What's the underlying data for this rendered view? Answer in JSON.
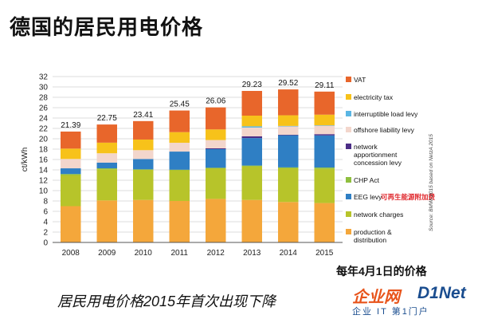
{
  "page_title": "德国的居民用电价格",
  "note": "每年4月1日的价格",
  "caption": "居民用电价格2015年首次出现下降",
  "source_text": "Source: BMWi 2015 based on NetzA 2015",
  "watermark": {
    "brand_cn": "企业网",
    "brand_en": "D1Net",
    "sub": "企业 IT 第1门户"
  },
  "colors": {
    "production": "#f4a73b",
    "network": "#b7c42a",
    "eeg": "#2f7fc4",
    "chp": "#8fbf3f",
    "concession": "#4b2d86",
    "offshore": "#f3d6cc",
    "interruptible": "#5ab6e4",
    "electricity_tax": "#f7c21a",
    "vat": "#e8662b",
    "eeg_cn_label": "#e0262b"
  },
  "chart_data": {
    "type": "bar",
    "stacked": true,
    "title": "",
    "xlabel": "",
    "ylabel": "ct/kWh",
    "ylim": [
      0,
      32
    ],
    "yticks": [
      0,
      2,
      4,
      6,
      8,
      10,
      12,
      14,
      16,
      18,
      20,
      22,
      24,
      26,
      28,
      30,
      32
    ],
    "grid": true,
    "legend_position": "right",
    "categories": [
      "2008",
      "2009",
      "2010",
      "2011",
      "2012",
      "2013",
      "2014",
      "2015"
    ],
    "totals": [
      "21.39",
      "22.75",
      "23.41",
      "25.45",
      "26.06",
      "29.23",
      "29.52",
      "29.11"
    ],
    "series": [
      {
        "name": "production & distribution",
        "color_key": "production",
        "values": [
          7.0,
          8.1,
          8.2,
          8.0,
          8.4,
          8.2,
          7.8,
          7.6
        ]
      },
      {
        "name": "network charges",
        "color_key": "network",
        "values": [
          6.0,
          6.0,
          5.8,
          6.0,
          6.0,
          6.5,
          6.5,
          6.6
        ]
      },
      {
        "name": "CHP Act",
        "color_key": "chp",
        "values": [
          0.2,
          0.2,
          0.1,
          0.03,
          0.002,
          0.13,
          0.18,
          0.25
        ]
      },
      {
        "name": "EEG levy",
        "color_key": "eeg",
        "values": [
          1.1,
          1.1,
          2.0,
          3.5,
          3.6,
          5.3,
          6.2,
          6.2
        ]
      },
      {
        "name": "network apportionment concession levy",
        "color_key": "concession",
        "values": [
          0.0,
          0.0,
          0.0,
          0.0,
          0.15,
          0.33,
          0.09,
          0.24
        ]
      },
      {
        "name": "offshore liability levy",
        "color_key": "offshore",
        "values": [
          1.8,
          1.8,
          1.7,
          1.7,
          1.6,
          1.7,
          1.7,
          1.7
        ]
      },
      {
        "name": "interruptible load levy",
        "color_key": "interruptible",
        "values": [
          0.0,
          0.0,
          0.0,
          0.0,
          0.0,
          0.25,
          0.01,
          0.01
        ]
      },
      {
        "name": "electricity tax",
        "color_key": "electricity_tax",
        "values": [
          2.0,
          2.05,
          2.05,
          2.05,
          2.05,
          2.05,
          2.05,
          2.05
        ]
      },
      {
        "name": "VAT",
        "color_key": "vat",
        "values": [
          3.29,
          3.5,
          3.56,
          4.17,
          4.25,
          4.77,
          4.99,
          4.45
        ]
      }
    ],
    "legend": [
      {
        "label": "VAT",
        "color_key": "vat"
      },
      {
        "label": "electricity tax",
        "color_key": "electricity_tax"
      },
      {
        "label": "interruptible load levy",
        "color_key": "interruptible"
      },
      {
        "label": "offshore liability levy",
        "color_key": "offshore"
      },
      {
        "label": "network apportionment concession levy",
        "color_key": "concession",
        "lines": [
          "network",
          "apportionment",
          "concession levy"
        ]
      },
      {
        "label": "CHP Act",
        "color_key": "chp"
      },
      {
        "label": "EEG levy",
        "color_key": "eeg",
        "annotation": "可再生能源附加费"
      },
      {
        "label": "network charges",
        "color_key": "network"
      },
      {
        "label": "production & distribution",
        "color_key": "production",
        "lines": [
          "production &",
          "distribution"
        ]
      }
    ]
  }
}
